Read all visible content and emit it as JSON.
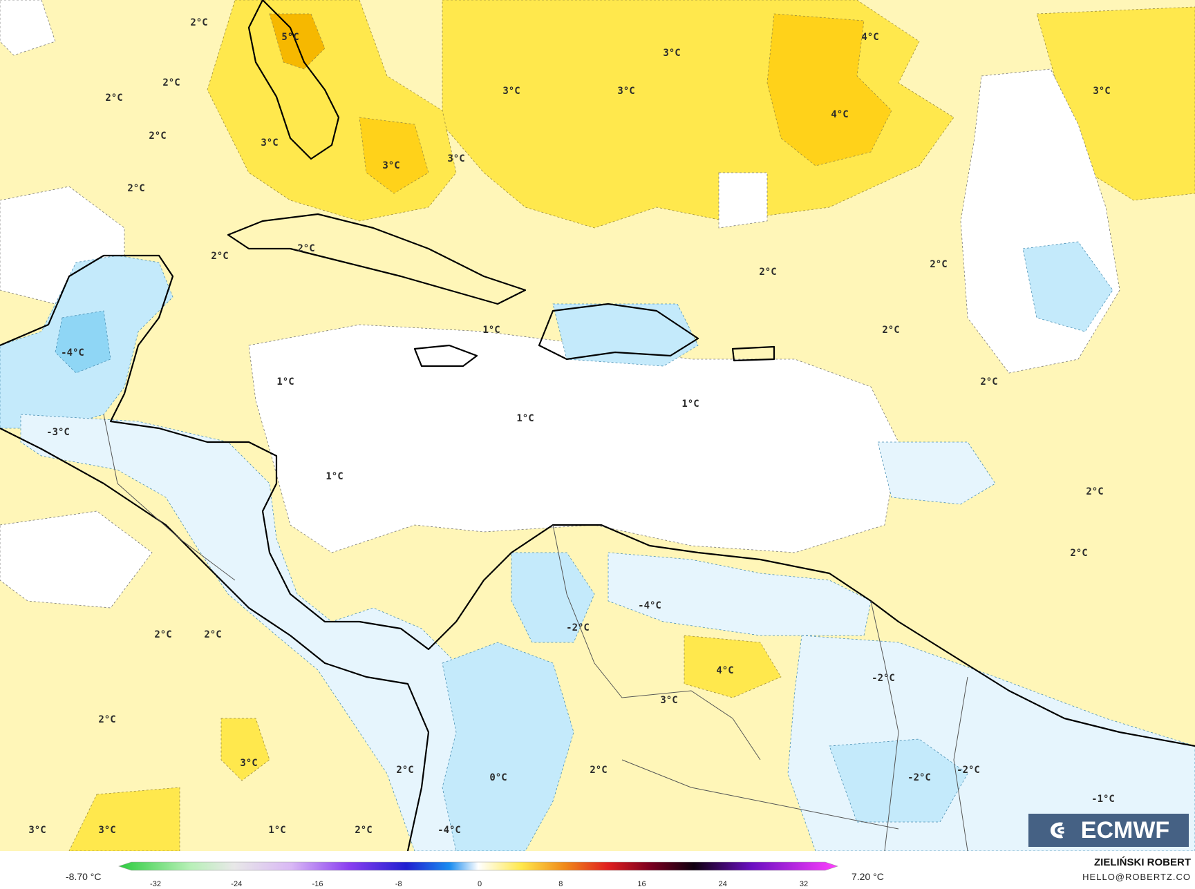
{
  "map": {
    "labels": [
      {
        "text": "2°C",
        "col": "a"
      },
      {
        "text": "5°C",
        "col": "a"
      },
      {
        "text": "2°C",
        "col": "a"
      },
      {
        "text": "2°C",
        "col": "a"
      },
      {
        "text": "2°C",
        "col": "a"
      },
      {
        "text": "3°C",
        "col": "a"
      },
      {
        "text": "2°C",
        "col": "a"
      },
      {
        "text": "3°C",
        "col": "a"
      },
      {
        "text": "3°C",
        "col": "a"
      },
      {
        "text": "3°C",
        "col": "a"
      },
      {
        "text": "3°C",
        "col": "a"
      },
      {
        "text": "3°C",
        "col": "a"
      },
      {
        "text": "4°C",
        "col": "a"
      },
      {
        "text": "4°C",
        "col": "a"
      },
      {
        "text": "3°C",
        "col": "a"
      },
      {
        "text": "2°C",
        "col": "a"
      },
      {
        "text": "2°C",
        "col": "a"
      },
      {
        "text": "2°C",
        "col": "a"
      },
      {
        "text": "2°C",
        "col": "a"
      },
      {
        "text": "-4°C",
        "col": "a"
      },
      {
        "text": "1°C",
        "col": "a"
      },
      {
        "text": "1°C",
        "col": "a"
      },
      {
        "text": "1°C",
        "col": "a"
      },
      {
        "text": "1°C",
        "col": "a"
      },
      {
        "text": "2°C",
        "col": "a"
      },
      {
        "text": "-3°C",
        "col": "a"
      },
      {
        "text": "1°C",
        "col": "a"
      },
      {
        "text": "2°C",
        "col": "a"
      },
      {
        "text": "2°C",
        "col": "a"
      },
      {
        "text": "-4°C",
        "col": "a"
      },
      {
        "text": "-2°C",
        "col": "a"
      },
      {
        "text": "2°C",
        "col": "a"
      },
      {
        "text": "2°C",
        "col": "a"
      },
      {
        "text": "4°C",
        "col": "a"
      },
      {
        "text": "3°C",
        "col": "a"
      },
      {
        "text": "-2°C",
        "col": "a"
      },
      {
        "text": "2°C",
        "col": "a"
      },
      {
        "text": "2°C",
        "col": "a"
      },
      {
        "text": "3°C",
        "col": "a"
      },
      {
        "text": "2°C",
        "col": "a"
      },
      {
        "text": "0°C",
        "col": "a"
      },
      {
        "text": "2°C",
        "col": "a"
      },
      {
        "text": "-2°C",
        "col": "a"
      },
      {
        "text": "-2°C",
        "col": "a"
      },
      {
        "text": "-1°C",
        "col": "a"
      },
      {
        "text": "3°C",
        "col": "a"
      },
      {
        "text": "3°C",
        "col": "a"
      },
      {
        "text": "1°C",
        "col": "a"
      },
      {
        "text": "2°C",
        "col": "a"
      },
      {
        "text": "-4°C",
        "col": "a"
      }
    ]
  },
  "legend": {
    "min_label": "-8.70 °C",
    "max_label": "7.20 °C",
    "ticks": [
      "-32",
      "-24",
      "-16",
      "-8",
      "0",
      "8",
      "16",
      "24",
      "32"
    ]
  },
  "credit": {
    "name": "ZIELIŃSKI ROBERT",
    "email": "HELLO@ROBERTZ.CO"
  },
  "logo": {
    "text": "ECMWF"
  },
  "colors": {
    "warm_1": "#fff6b8",
    "warm_2": "#ffe84d",
    "warm_3": "#ffd21a",
    "warm_4": "#f6b800",
    "hot": "#f08a1a",
    "cool_1": "#e6f5fd",
    "cool_2": "#c4eafb",
    "cool_3": "#8fd6f5",
    "land_line": "#000000"
  }
}
